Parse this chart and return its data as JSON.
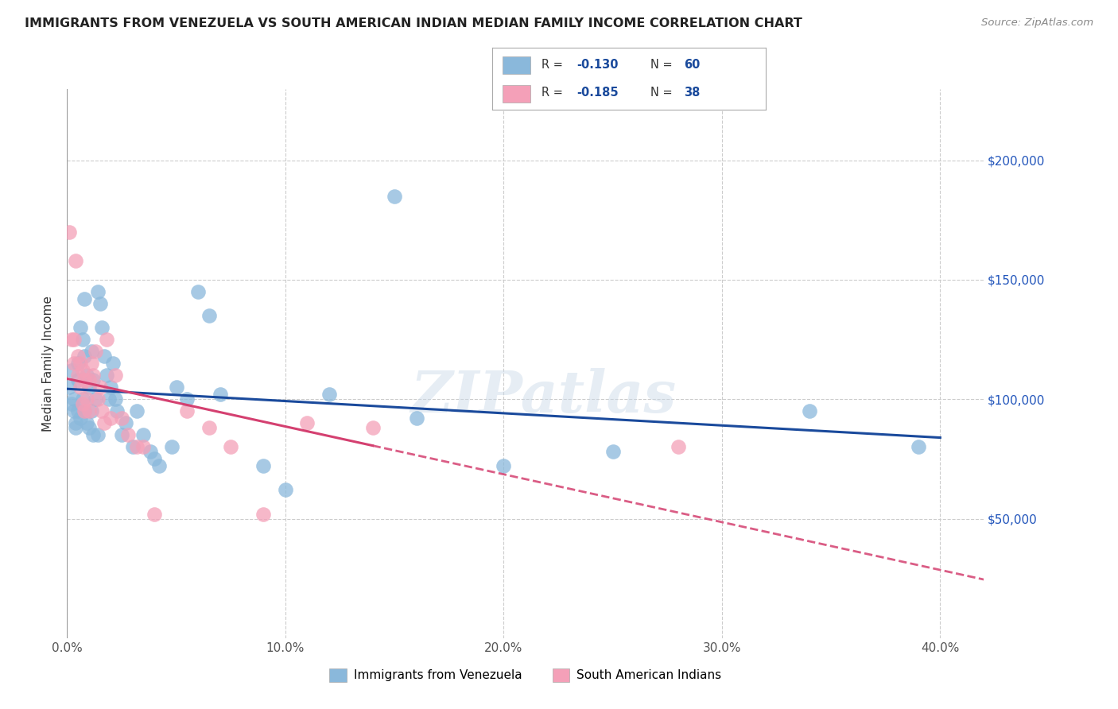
{
  "title": "IMMIGRANTS FROM VENEZUELA VS SOUTH AMERICAN INDIAN MEDIAN FAMILY INCOME CORRELATION CHART",
  "source": "Source: ZipAtlas.com",
  "ylabel": "Median Family Income",
  "xlim": [
    0.0,
    0.42
  ],
  "ylim": [
    0,
    230000
  ],
  "xtick_labels": [
    "0.0%",
    "10.0%",
    "20.0%",
    "30.0%",
    "40.0%"
  ],
  "xtick_values": [
    0.0,
    0.1,
    0.2,
    0.3,
    0.4
  ],
  "ytick_labels": [
    "$50,000",
    "$100,000",
    "$150,000",
    "$200,000"
  ],
  "ytick_values": [
    50000,
    100000,
    150000,
    200000
  ],
  "legend_labels": [
    "Immigrants from Venezuela",
    "South American Indians"
  ],
  "legend_R": [
    "-0.130",
    "-0.185"
  ],
  "legend_N": [
    "60",
    "38"
  ],
  "blue_color": "#8ab8db",
  "pink_color": "#f4a0b8",
  "blue_line_color": "#1a4a9c",
  "pink_line_color": "#d44070",
  "watermark_text": "ZIPatlas",
  "blue_x": [
    0.001,
    0.002,
    0.002,
    0.003,
    0.003,
    0.004,
    0.004,
    0.005,
    0.005,
    0.005,
    0.006,
    0.006,
    0.007,
    0.007,
    0.008,
    0.008,
    0.008,
    0.009,
    0.009,
    0.01,
    0.01,
    0.011,
    0.011,
    0.012,
    0.012,
    0.013,
    0.014,
    0.014,
    0.015,
    0.016,
    0.017,
    0.018,
    0.019,
    0.02,
    0.021,
    0.022,
    0.023,
    0.025,
    0.027,
    0.03,
    0.032,
    0.035,
    0.038,
    0.04,
    0.042,
    0.048,
    0.05,
    0.055,
    0.06,
    0.065,
    0.07,
    0.09,
    0.1,
    0.12,
    0.15,
    0.16,
    0.2,
    0.25,
    0.34,
    0.39
  ],
  "blue_y": [
    105000,
    98000,
    112000,
    100000,
    95000,
    90000,
    88000,
    115000,
    108000,
    95000,
    130000,
    92000,
    125000,
    100000,
    142000,
    118000,
    95000,
    110000,
    90000,
    105000,
    88000,
    120000,
    95000,
    108000,
    85000,
    100000,
    85000,
    145000,
    140000,
    130000,
    118000,
    110000,
    100000,
    105000,
    115000,
    100000,
    95000,
    85000,
    90000,
    80000,
    95000,
    85000,
    78000,
    75000,
    72000,
    80000,
    105000,
    100000,
    145000,
    135000,
    102000,
    72000,
    62000,
    102000,
    185000,
    92000,
    72000,
    78000,
    95000,
    80000
  ],
  "pink_x": [
    0.001,
    0.002,
    0.003,
    0.003,
    0.004,
    0.005,
    0.005,
    0.006,
    0.006,
    0.007,
    0.007,
    0.008,
    0.008,
    0.009,
    0.01,
    0.01,
    0.011,
    0.012,
    0.013,
    0.014,
    0.015,
    0.016,
    0.017,
    0.018,
    0.02,
    0.022,
    0.025,
    0.028,
    0.032,
    0.035,
    0.04,
    0.055,
    0.065,
    0.075,
    0.09,
    0.11,
    0.14,
    0.28
  ],
  "pink_y": [
    170000,
    125000,
    125000,
    115000,
    158000,
    118000,
    110000,
    115000,
    105000,
    112000,
    98000,
    108000,
    95000,
    100000,
    108000,
    95000,
    115000,
    110000,
    120000,
    100000,
    105000,
    95000,
    90000,
    125000,
    92000,
    110000,
    92000,
    85000,
    80000,
    80000,
    52000,
    95000,
    88000,
    80000,
    52000,
    90000,
    88000,
    80000
  ]
}
